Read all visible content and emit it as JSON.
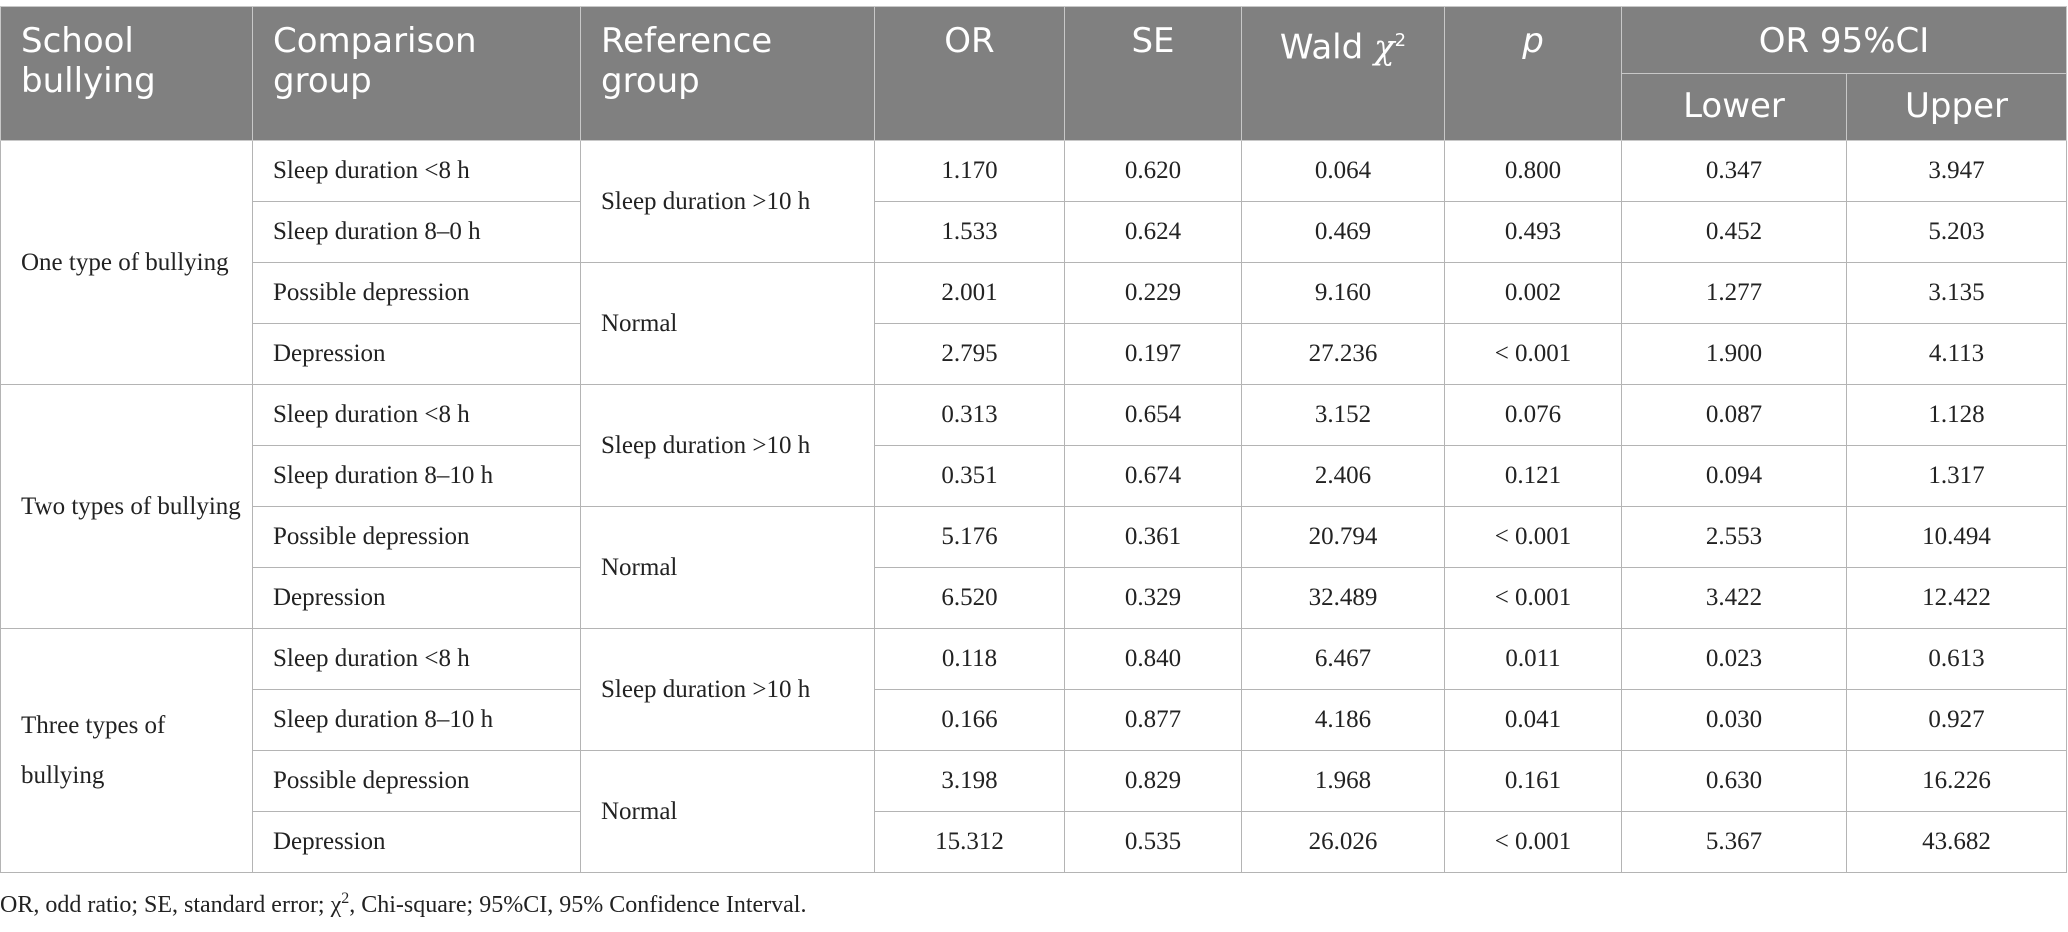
{
  "header": {
    "school_bullying": "School bullying",
    "comparison_group": "Comparison group",
    "reference_group": "Reference group",
    "or": "OR",
    "se": "SE",
    "wald_word": "Wald",
    "chi_symbol": "χ",
    "chi_sup": "2",
    "p": "p",
    "ci": "OR 95%CI",
    "lower": "Lower",
    "upper": "Upper"
  },
  "groups": [
    {
      "label": "One type of bullying",
      "refs": [
        "Sleep duration >10 h",
        "Normal"
      ],
      "rows": [
        {
          "comparison": "Sleep duration <8 h",
          "or": "1.170",
          "se": "0.620",
          "wald": "0.064",
          "p": "0.800",
          "lower": "0.347",
          "upper": "3.947"
        },
        {
          "comparison": "Sleep duration 8–0 h",
          "or": "1.533",
          "se": "0.624",
          "wald": "0.469",
          "p": "0.493",
          "lower": "0.452",
          "upper": "5.203"
        },
        {
          "comparison": "Possible depression",
          "or": "2.001",
          "se": "0.229",
          "wald": "9.160",
          "p": "0.002",
          "lower": "1.277",
          "upper": "3.135"
        },
        {
          "comparison": "Depression",
          "or": "2.795",
          "se": "0.197",
          "wald": "27.236",
          "p": "< 0.001",
          "lower": "1.900",
          "upper": "4.113"
        }
      ]
    },
    {
      "label": "Two types of bullying",
      "refs": [
        "Sleep duration >10 h",
        "Normal"
      ],
      "rows": [
        {
          "comparison": "Sleep duration <8 h",
          "or": "0.313",
          "se": "0.654",
          "wald": "3.152",
          "p": "0.076",
          "lower": "0.087",
          "upper": "1.128"
        },
        {
          "comparison": "Sleep duration 8–10 h",
          "or": "0.351",
          "se": "0.674",
          "wald": "2.406",
          "p": "0.121",
          "lower": "0.094",
          "upper": "1.317"
        },
        {
          "comparison": "Possible depression",
          "or": "5.176",
          "se": "0.361",
          "wald": "20.794",
          "p": "< 0.001",
          "lower": "2.553",
          "upper": "10.494"
        },
        {
          "comparison": "Depression",
          "or": "6.520",
          "se": "0.329",
          "wald": "32.489",
          "p": "< 0.001",
          "lower": "3.422",
          "upper": "12.422"
        }
      ]
    },
    {
      "label": "Three types of bullying",
      "refs": [
        "Sleep duration >10 h",
        "Normal"
      ],
      "rows": [
        {
          "comparison": "Sleep duration <8 h",
          "or": "0.118",
          "se": "0.840",
          "wald": "6.467",
          "p": "0.011",
          "lower": "0.023",
          "upper": "0.613"
        },
        {
          "comparison": "Sleep duration 8–10 h",
          "or": "0.166",
          "se": "0.877",
          "wald": "4.186",
          "p": "0.041",
          "lower": "0.030",
          "upper": "0.927"
        },
        {
          "comparison": "Possible depression",
          "or": "3.198",
          "se": "0.829",
          "wald": "1.968",
          "p": "0.161",
          "lower": "0.630",
          "upper": "16.226"
        },
        {
          "comparison": "Depression",
          "or": "15.312",
          "se": "0.535",
          "wald": "26.026",
          "p": "< 0.001",
          "lower": "5.367",
          "upper": "43.682"
        }
      ]
    }
  ],
  "footnote": {
    "part1": "OR, odd ratio; SE, standard error; χ",
    "sup": "2",
    "part2": ", Chi-square; 95%CI, 95% Confidence Interval."
  },
  "colors": {
    "header_bg": "#808080",
    "header_text": "#ffffff",
    "grid": "#b4b4b4"
  }
}
